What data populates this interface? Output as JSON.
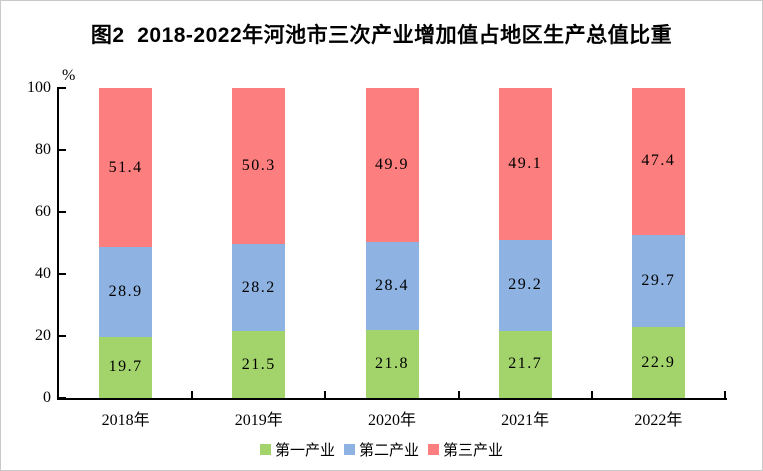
{
  "title": "图2  2018-2022年河池市三次产业增加值占地区生产总值比重",
  "page": {
    "background": "#ffffff",
    "border_color": "#c9c9c9"
  },
  "chart_data": {
    "type": "bar",
    "stacked": true,
    "title": "图2  2018-2022年河池市三次产业增加值占地区生产总值比重",
    "categories": [
      "2018年",
      "2019年",
      "2020年",
      "2021年",
      "2022年"
    ],
    "series": [
      {
        "name": "第一产业",
        "color": "#a3d46c",
        "values": [
          19.7,
          21.5,
          21.8,
          21.7,
          22.9
        ]
      },
      {
        "name": "第二产业",
        "color": "#8eb3e2",
        "values": [
          28.9,
          28.2,
          28.4,
          29.2,
          29.7
        ]
      },
      {
        "name": "第三产业",
        "color": "#fc7e7e",
        "values": [
          51.4,
          50.3,
          49.9,
          49.1,
          47.4
        ]
      }
    ],
    "xlabel": "",
    "ylabel": "%",
    "ylim": [
      0,
      100
    ],
    "yticks": [
      0,
      20,
      40,
      60,
      80,
      100
    ],
    "grid": false,
    "legend_position": "bottom",
    "value_labels": true
  }
}
